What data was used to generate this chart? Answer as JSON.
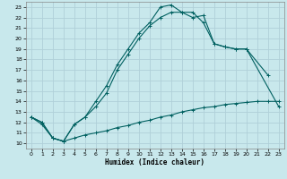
{
  "bg_color": "#c8e8ec",
  "grid_color": "#b0d0d8",
  "line_color": "#006060",
  "xlabel": "Humidex (Indice chaleur)",
  "xlim": [
    -0.5,
    23.5
  ],
  "ylim": [
    9.5,
    23.5
  ],
  "xticks": [
    0,
    1,
    2,
    3,
    4,
    5,
    6,
    7,
    8,
    9,
    10,
    11,
    12,
    13,
    14,
    15,
    16,
    17,
    18,
    19,
    20,
    21,
    22,
    23
  ],
  "yticks": [
    10,
    11,
    12,
    13,
    14,
    15,
    16,
    17,
    18,
    19,
    20,
    21,
    22,
    23
  ],
  "line1_x": [
    0,
    1,
    2,
    3,
    4,
    5,
    6,
    7,
    8,
    9,
    10,
    11,
    12,
    13,
    14,
    15,
    16,
    17,
    18,
    19,
    20,
    22
  ],
  "line1_y": [
    12.5,
    12.0,
    10.5,
    10.2,
    11.8,
    12.5,
    14.0,
    15.5,
    17.5,
    19.0,
    20.5,
    21.5,
    23.0,
    23.2,
    22.5,
    22.0,
    22.2,
    19.5,
    19.2,
    19.0,
    19.0,
    16.5
  ],
  "line2_x": [
    0,
    1,
    2,
    3,
    4,
    5,
    6,
    7,
    8,
    9,
    10,
    11,
    12,
    13,
    14,
    15,
    16,
    17,
    18,
    19,
    20,
    21,
    22,
    23
  ],
  "line2_y": [
    12.5,
    12.0,
    10.5,
    10.2,
    11.8,
    12.5,
    13.5,
    14.8,
    17.0,
    18.5,
    20.0,
    21.2,
    22.0,
    22.5,
    22.5,
    22.5,
    21.5,
    19.5,
    19.2,
    19.0,
    19.0,
    null,
    null,
    13.5
  ],
  "line3_x": [
    0,
    1,
    2,
    3,
    4,
    5,
    6,
    7,
    8,
    9,
    10,
    11,
    12,
    13,
    14,
    15,
    16,
    17,
    18,
    19,
    20,
    21,
    22,
    23
  ],
  "line3_y": [
    12.5,
    11.8,
    10.5,
    10.2,
    10.5,
    10.8,
    11.0,
    11.2,
    11.5,
    11.7,
    12.0,
    12.2,
    12.5,
    12.7,
    13.0,
    13.2,
    13.4,
    13.5,
    13.7,
    13.8,
    13.9,
    14.0,
    14.0,
    14.0
  ]
}
